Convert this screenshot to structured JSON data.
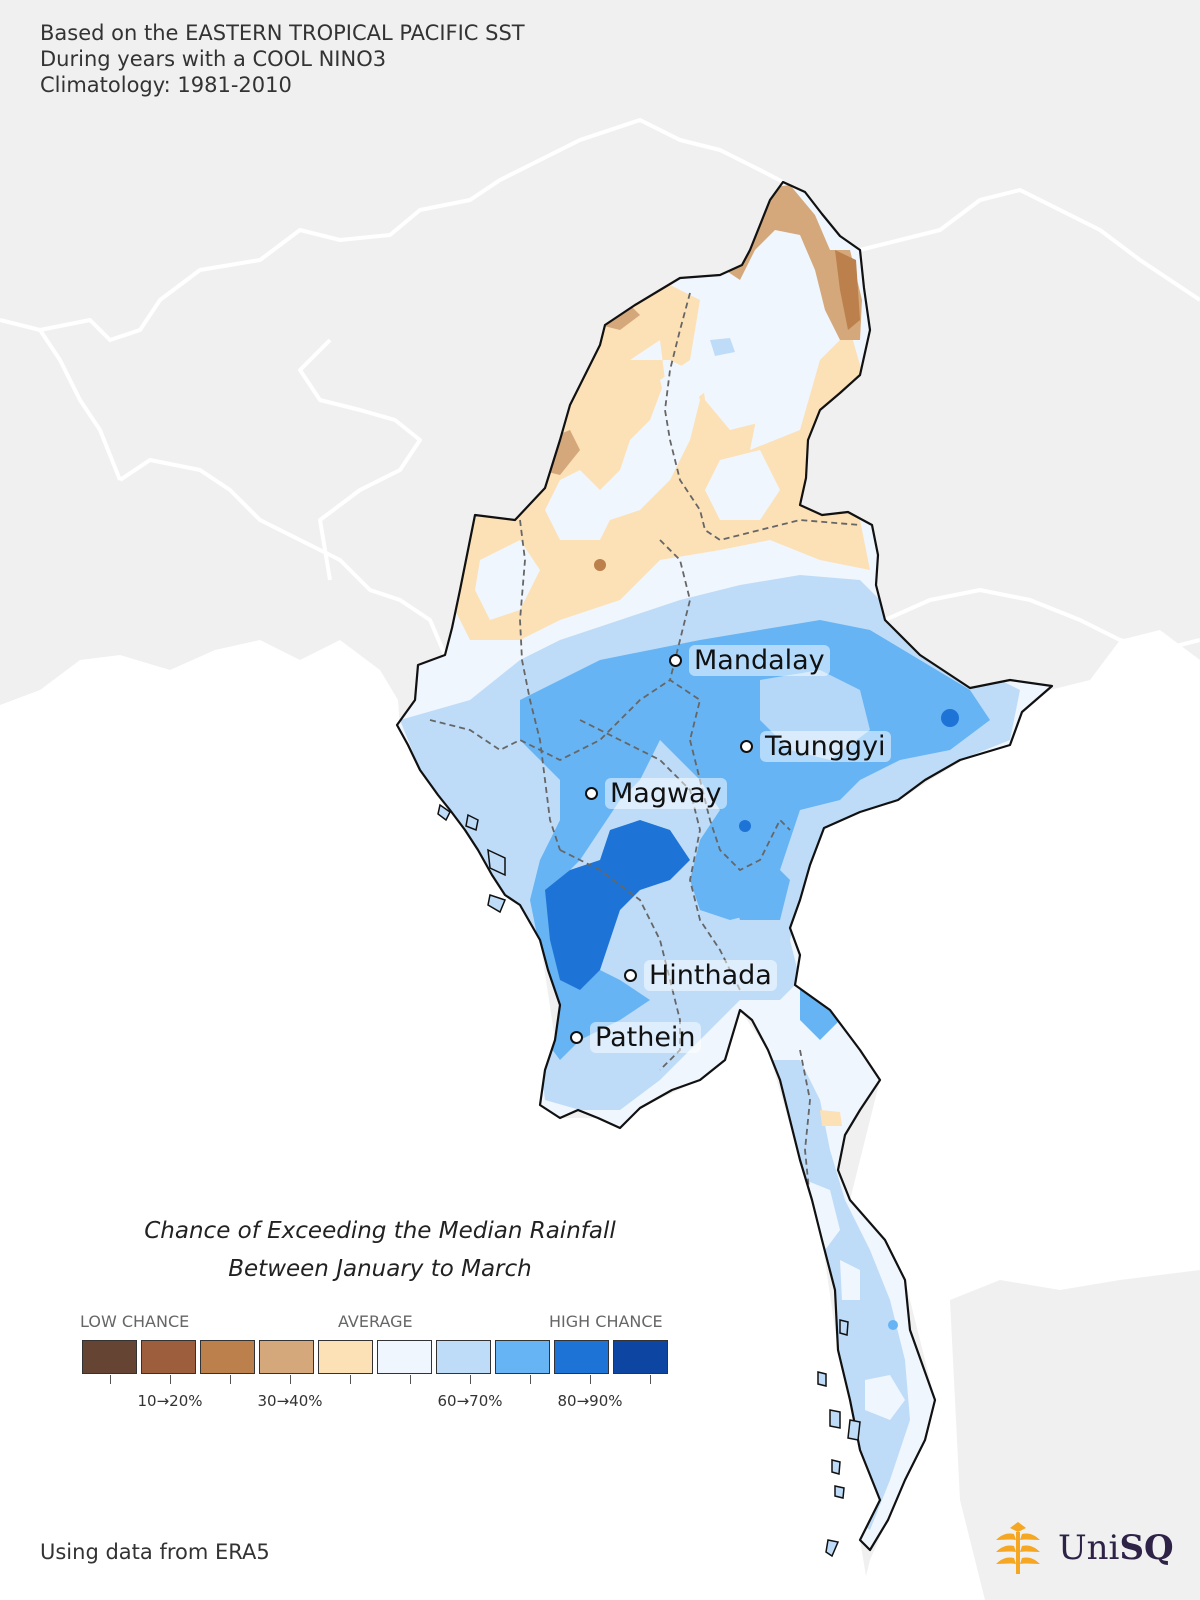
{
  "header": {
    "line1": "Based on the EASTERN TROPICAL PACIFIC SST",
    "line2": "During years with a COOL NINO3",
    "line3": "Climatology: 1981-2010"
  },
  "cities": [
    {
      "name": "Mandalay"
    },
    {
      "name": "Taunggyi"
    },
    {
      "name": "Magway"
    },
    {
      "name": "Hinthada"
    },
    {
      "name": "Pathein"
    }
  ],
  "legend": {
    "title_line1": "Chance of Exceeding the Median Rainfall",
    "title_line2": "Between January to March",
    "low": "LOW CHANCE",
    "average": "AVERAGE",
    "high": "HIGH CHANCE",
    "colors": [
      "#664433",
      "#9c5e3d",
      "#bb804c",
      "#d4a87a",
      "#fce0b6",
      "#f0f6fd",
      "#bedcf8",
      "#66b4f4",
      "#1e74d6",
      "#0c46a2"
    ],
    "tick_labels": [
      "10→20%",
      "30→40%",
      "60→70%",
      "80→90%"
    ]
  },
  "map_colors": {
    "land": "#f0f0f0",
    "sea": "#ffffff",
    "border": "#ffffff"
  },
  "footer": "Using data from ERA5",
  "logo": {
    "text_uni": "Uni",
    "text_sq": "SQ",
    "icon": "unisq-tree-icon"
  }
}
